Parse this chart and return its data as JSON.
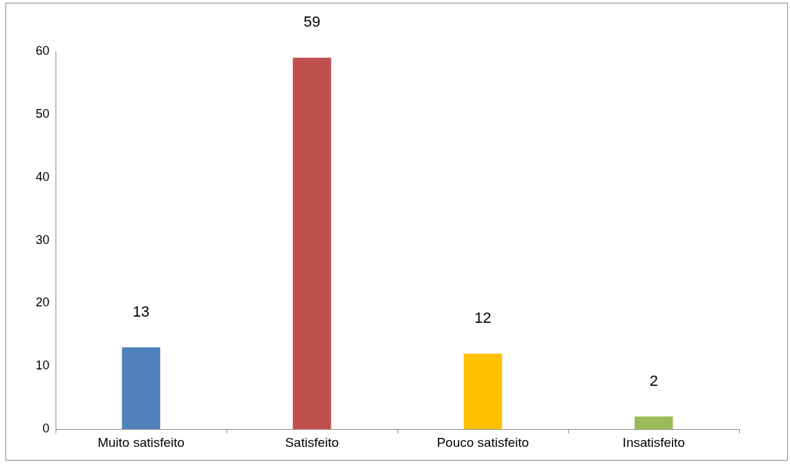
{
  "chart_data": {
    "type": "bar",
    "categories": [
      "Muito satisfeito",
      "Satisfeito",
      "Pouco satisfeito",
      "Insatisfeito"
    ],
    "values": [
      13,
      59,
      12,
      2
    ],
    "colors": [
      "#4f81bd",
      "#c0504d",
      "#ffc000",
      "#9bbb59"
    ],
    "ylim": [
      0,
      60
    ],
    "yticks": [
      0,
      10,
      20,
      30,
      40,
      50,
      60
    ],
    "grid": false,
    "legend": false,
    "data_labels": true
  }
}
